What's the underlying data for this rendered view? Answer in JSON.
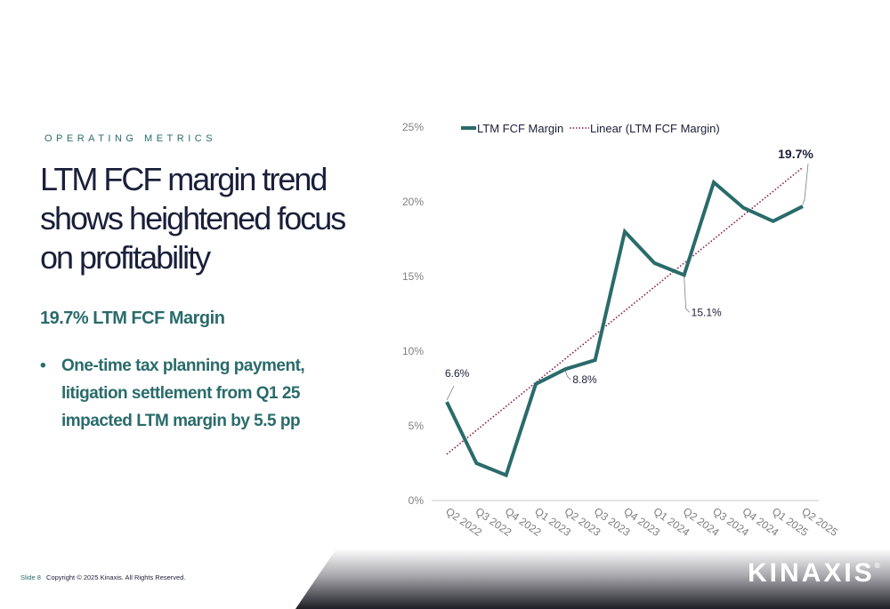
{
  "slide": {
    "eyebrow": "OPERATING METRICS",
    "headline_lines": [
      "LTM FCF margin trend",
      "shows heightened focus",
      "on profitability"
    ],
    "subhead": "19.7% LTM FCF Margin",
    "bullet_lines": [
      "One-time tax planning payment,",
      "litigation settlement from Q1 25",
      "impacted LTM margin by 5.5 pp"
    ],
    "footer": {
      "slide_number": "Slide 8",
      "copyright": "Copyright © 2025 Kinaxis. All Rights Reserved."
    },
    "logo": {
      "text": "KINAXIS",
      "mark": "®"
    }
  },
  "colors": {
    "accent": "#2a6b6b",
    "navy": "#1a1f3a",
    "trend": "#8b1a4a",
    "grey": "#7f7f7f"
  },
  "chart_data": {
    "type": "line",
    "categories": [
      "Q2 2022",
      "Q3 2022",
      "Q4 2022",
      "Q1 2023",
      "Q2 2023",
      "Q3 2023",
      "Q4 2023",
      "Q1 2024",
      "Q2 2024",
      "Q3 2024",
      "Q4 2024",
      "Q1 2025",
      "Q2 2025"
    ],
    "series": [
      {
        "name": "LTM FCF Margin",
        "values": [
          6.6,
          2.5,
          1.7,
          7.8,
          8.8,
          9.4,
          18.0,
          15.9,
          15.1,
          21.3,
          19.6,
          18.7,
          19.7
        ],
        "color": "#2a6b6b"
      },
      {
        "name": "Linear (LTM FCF Margin)",
        "values": [
          3.1,
          4.7,
          6.3,
          7.9,
          9.5,
          11.1,
          12.7,
          14.3,
          15.9,
          17.5,
          19.1,
          20.7,
          22.3
        ],
        "color": "#8b1a4a"
      }
    ],
    "y_ticks": [
      "0%",
      "5%",
      "10%",
      "15%",
      "20%",
      "25%"
    ],
    "ylim": [
      0,
      25
    ],
    "data_labels": [
      {
        "index": 0,
        "text": "6.6%"
      },
      {
        "index": 4,
        "text": "8.8%"
      },
      {
        "index": 8,
        "text": "15.1%"
      },
      {
        "index": 12,
        "text": "19.7%"
      }
    ],
    "legend_position": "top",
    "grid": false
  }
}
